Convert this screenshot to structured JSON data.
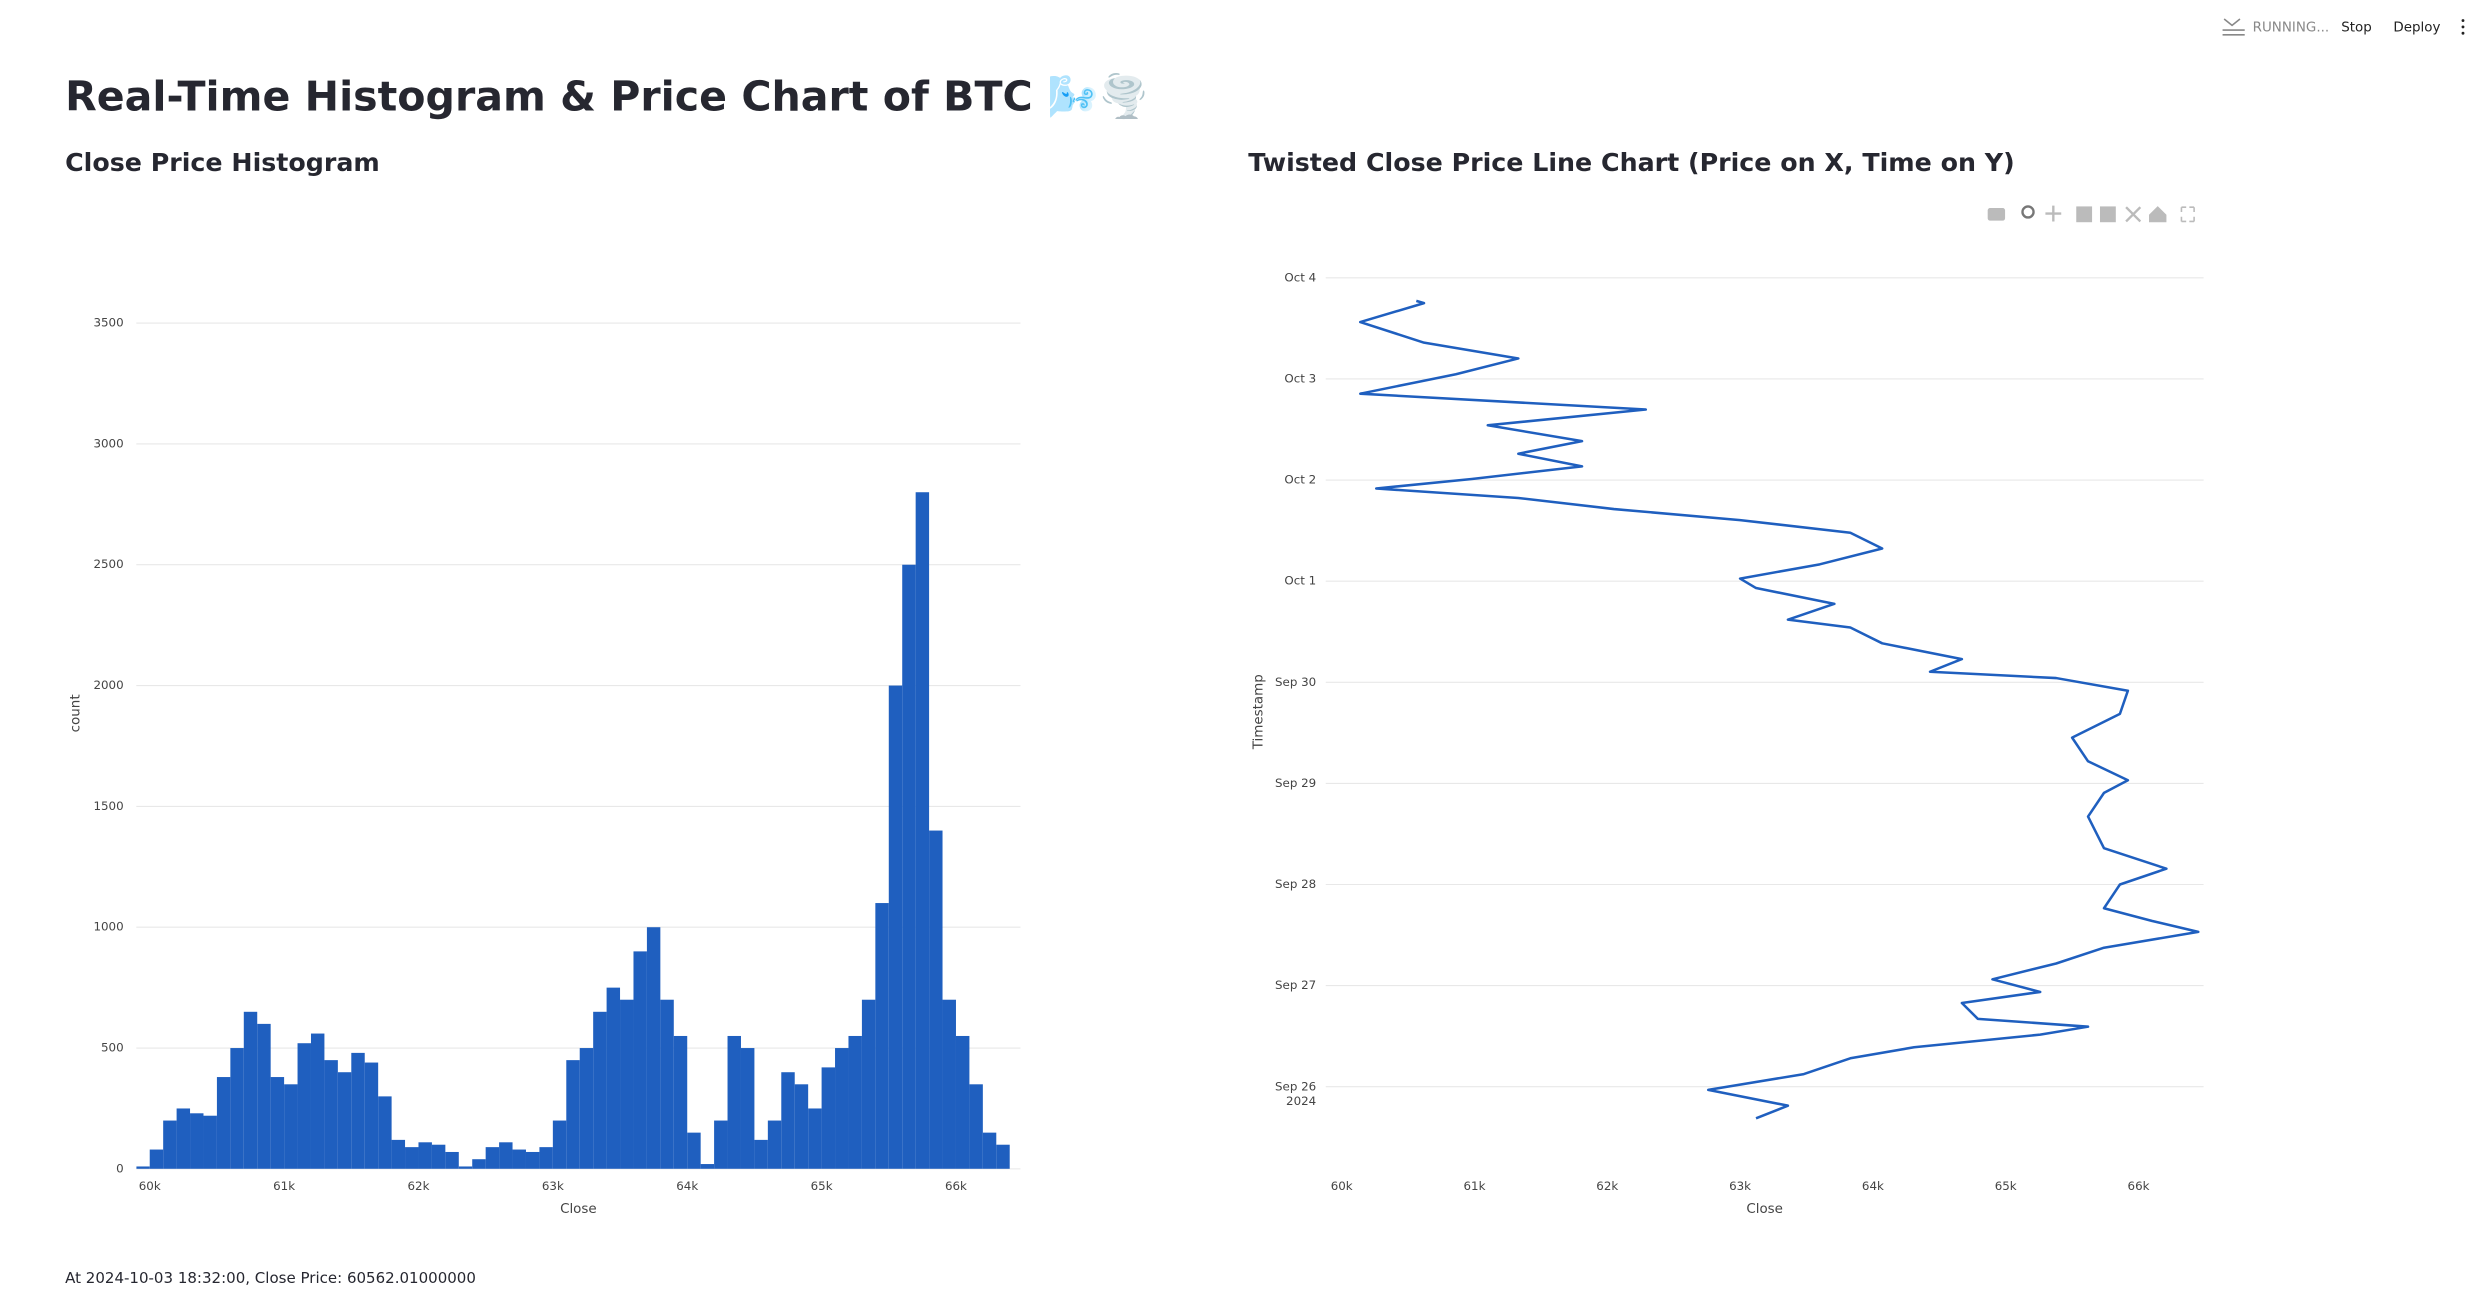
{
  "header": {
    "status": "RUNNING...",
    "buttons": [
      "Stop",
      "Deploy"
    ]
  },
  "title": "Real-Time Histogram & Price Chart of BTC 🌬️🌪️",
  "chart_data": [
    {
      "type": "histogram",
      "title": "Close Price Histogram",
      "x_label": "Close",
      "y_label": "count",
      "color": "#1f5fbf",
      "grid": true,
      "bins": [
        59900,
        60000,
        60100,
        60200,
        60300,
        60400,
        60500,
        60600,
        60700,
        60800,
        60900,
        61000,
        61100,
        61200,
        61300,
        61400,
        61500,
        61600,
        61700,
        61800,
        61900,
        62000,
        62100,
        62200,
        62300,
        62400,
        62500,
        62600,
        62700,
        62800,
        62900,
        63000,
        63100,
        63200,
        63300,
        63400,
        63500,
        63600,
        63700,
        63800,
        63900,
        64000,
        64100,
        64200,
        64300,
        64400,
        64500,
        64600,
        64700,
        64800,
        64900,
        65000,
        65100,
        65200,
        65300,
        65400,
        65500,
        65600,
        65700,
        65800,
        65900,
        66000,
        66100,
        66200,
        66300,
        66400
      ],
      "values": [
        10,
        80,
        200,
        250,
        230,
        220,
        380,
        500,
        650,
        600,
        380,
        350,
        520,
        560,
        450,
        400,
        480,
        440,
        300,
        120,
        90,
        110,
        100,
        70,
        10,
        40,
        90,
        110,
        80,
        70,
        90,
        200,
        450,
        500,
        650,
        750,
        700,
        900,
        1000,
        700,
        550,
        150,
        20,
        200,
        550,
        500,
        120,
        200,
        400,
        350,
        250,
        420,
        500,
        550,
        700,
        1100,
        2000,
        2500,
        2800,
        1400,
        700,
        550,
        350,
        150,
        100
      ],
      "xlim": [
        59900,
        66480
      ],
      "ylim": [
        0,
        3770
      ],
      "xticks": [
        {
          "value": 60000,
          "label": "60k"
        },
        {
          "value": 61000,
          "label": "61k"
        },
        {
          "value": 62000,
          "label": "62k"
        },
        {
          "value": 63000,
          "label": "63k"
        },
        {
          "value": 64000,
          "label": "64k"
        },
        {
          "value": 65000,
          "label": "65k"
        },
        {
          "value": 66000,
          "label": "66k"
        }
      ],
      "yticks": [
        0,
        500,
        1000,
        1500,
        2000,
        2500,
        3000,
        3500
      ]
    },
    {
      "type": "line",
      "title": "Twisted Close Price Line Chart (Price on X, Time on Y)",
      "x_label": "Close",
      "y_label": "Timestamp",
      "color": "#1f5fbf",
      "grid": true,
      "y": [
        "2024-09-25 16:30",
        "2024-09-25 19:30",
        "2024-09-25 23:15",
        "2024-09-26 03:00",
        "2024-09-26 06:45",
        "2024-09-26 09:22",
        "2024-09-26 12:22",
        "2024-09-26 14:15",
        "2024-09-26 16:07",
        "2024-09-26 19:52",
        "2024-09-26 22:30",
        "2024-09-27 01:30",
        "2024-09-27 05:15",
        "2024-09-27 09:00",
        "2024-09-27 12:45",
        "2024-09-27 15:22",
        "2024-09-27 18:22",
        "2024-09-28 00:00",
        "2024-09-28 03:45",
        "2024-09-28 08:37",
        "2024-09-28 16:07",
        "2024-09-28 21:45",
        "2024-09-29 00:45",
        "2024-09-29 05:15",
        "2024-09-29 10:52",
        "2024-09-29 16:30",
        "2024-09-29 22:00",
        "2024-09-30 01:00",
        "2024-09-30 02:30",
        "2024-09-30 05:30",
        "2024-09-30 09:15",
        "2024-09-30 13:00",
        "2024-09-30 14:52",
        "2024-09-30 18:37",
        "2024-09-30 22:22",
        "2024-10-01 00:37",
        "2024-10-01 04:00",
        "2024-10-01 07:45",
        "2024-10-01 11:30",
        "2024-10-01 14:30",
        "2024-10-01 17:07",
        "2024-10-01 19:45",
        "2024-10-01 22:00",
        "2024-10-02 00:15",
        "2024-10-02 03:15",
        "2024-10-02 06:15",
        "2024-10-02 09:15",
        "2024-10-02 13:00",
        "2024-10-02 16:45",
        "2024-10-02 20:30",
        "2024-10-03 01:07",
        "2024-10-03 04:52",
        "2024-10-03 08:37",
        "2024-10-03 13:30",
        "2024-10-03 18:00",
        "2024-10-03 18:32"
      ],
      "values": [
        63120,
        63360,
        62760,
        63480,
        63830,
        64310,
        65260,
        65620,
        64790,
        64670,
        65260,
        64900,
        65380,
        65740,
        66450,
        66100,
        65740,
        65860,
        66210,
        65740,
        65620,
        65740,
        65920,
        65620,
        65500,
        65860,
        65920,
        65380,
        64430,
        64670,
        64070,
        63830,
        63360,
        63710,
        63120,
        63000,
        63600,
        64070,
        63830,
        63000,
        62050,
        61330,
        60260,
        60980,
        61810,
        61330,
        61810,
        61100,
        62290,
        60140,
        60860,
        61330,
        60620,
        60140,
        60620,
        60562.01
      ],
      "xlim": [
        59880,
        66490
      ],
      "ylim": [
        "2024-09-25 06:00",
        "2024-10-04 04:00"
      ],
      "xticks": [
        {
          "value": 60000,
          "label": "60k"
        },
        {
          "value": 61000,
          "label": "61k"
        },
        {
          "value": 62000,
          "label": "62k"
        },
        {
          "value": 63000,
          "label": "63k"
        },
        {
          "value": 64000,
          "label": "64k"
        },
        {
          "value": 65000,
          "label": "65k"
        },
        {
          "value": 66000,
          "label": "66k"
        }
      ],
      "yticks": [
        {
          "value": "2024-09-26",
          "label": "Sep 26\n2024"
        },
        {
          "value": "2024-09-27",
          "label": "Sep 27"
        },
        {
          "value": "2024-09-28",
          "label": "Sep 28"
        },
        {
          "value": "2024-09-29",
          "label": "Sep 29"
        },
        {
          "value": "2024-09-30",
          "label": "Sep 30"
        },
        {
          "value": "2024-10-01",
          "label": "Oct 1"
        },
        {
          "value": "2024-10-02",
          "label": "Oct 2"
        },
        {
          "value": "2024-10-03",
          "label": "Oct 3"
        },
        {
          "value": "2024-10-04",
          "label": "Oct 4"
        }
      ]
    }
  ],
  "footer": "At 2024-10-03 18:32:00, Close Price: 60562.01000000"
}
